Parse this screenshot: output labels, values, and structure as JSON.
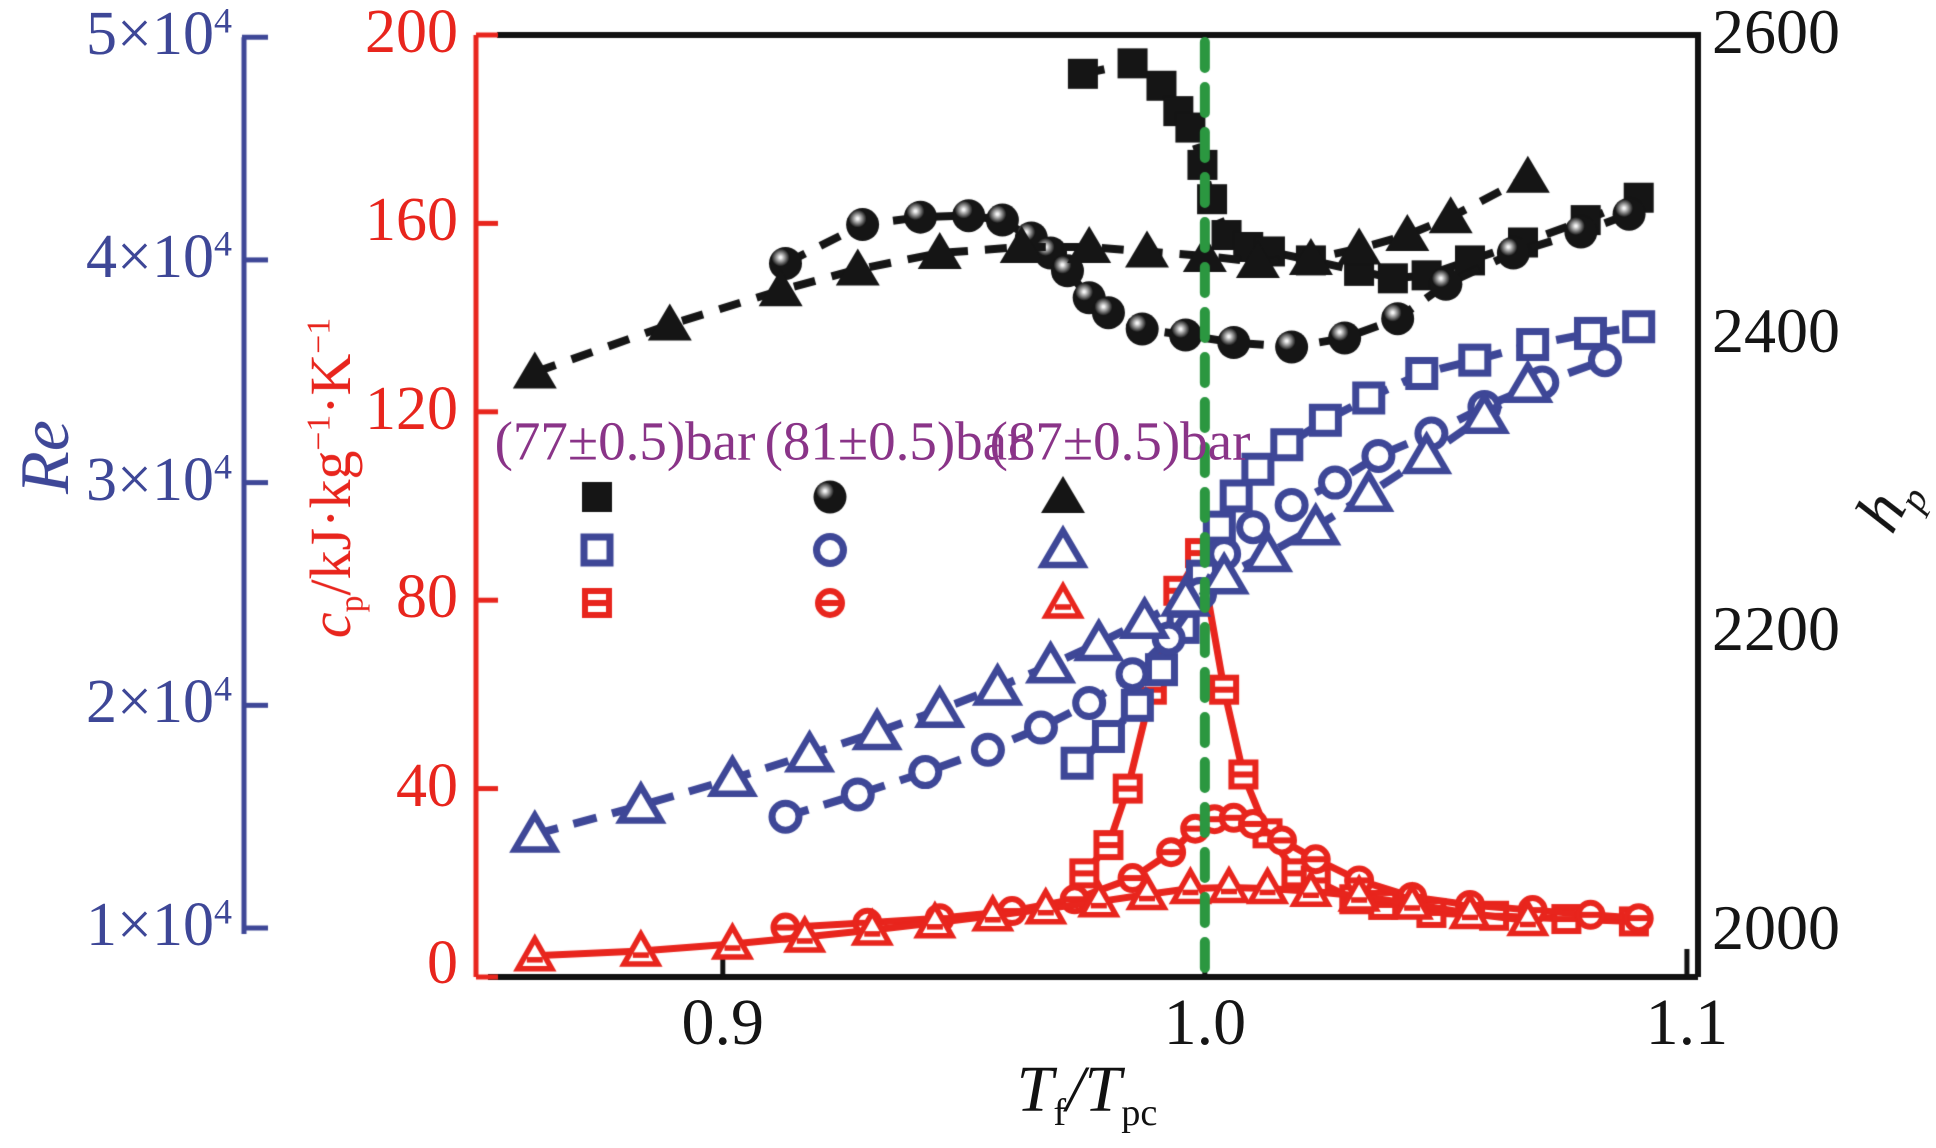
{
  "colors": {
    "black": "#151515",
    "blue": "#3E4797",
    "red": "#E8251D",
    "green": "#2B9740",
    "purple": "#8A3488",
    "frame": "#111111"
  },
  "axes": {
    "x": {
      "title_html": "<i>T</i><sub>f</sub>/<i>T</i><sub>pc</sub>",
      "range": [
        0.8488,
        1.1023
      ],
      "ticks": [
        {
          "label": "0.9",
          "value": 0.9
        },
        {
          "label": "1.0",
          "value": 1.0
        },
        {
          "label": "1.1",
          "value": 1.1
        }
      ]
    },
    "re": {
      "title_html": "<i>Re</i>",
      "range": [
        0.78,
        5.01
      ],
      "unit_exponent": "10^4",
      "ticks": [
        {
          "base": "5×10",
          "sup": "4",
          "value": 5
        },
        {
          "base": "4×10",
          "sup": "4",
          "value": 4
        },
        {
          "base": "3×10",
          "sup": "4",
          "value": 3
        },
        {
          "base": "2×10",
          "sup": "4",
          "value": 2
        },
        {
          "base": "1×10",
          "sup": "4",
          "value": 1
        }
      ]
    },
    "cp": {
      "title_html": "<i>c</i><sub>p</sub>/kJ·kg<sup>−1</sup>·K<sup>−1</sup>",
      "range": [
        0,
        200
      ],
      "ticks": [
        {
          "label": "200",
          "value": 200
        },
        {
          "label": "160",
          "value": 160
        },
        {
          "label": "120",
          "value": 120
        },
        {
          "label": "80",
          "value": 80
        },
        {
          "label": "40",
          "value": 40
        },
        {
          "label": "0",
          "value": 0
        }
      ]
    },
    "hp": {
      "title_html": "<i>h</i><sub>p</sub>",
      "range": [
        1967,
        2598
      ],
      "ticks": [
        {
          "label": "2600",
          "value": 2600
        },
        {
          "label": "2400",
          "value": 2400
        },
        {
          "label": "2200",
          "value": 2200
        },
        {
          "label": "2000",
          "value": 2000
        }
      ]
    }
  },
  "legend": {
    "labels": [
      "(77±0.5)bar",
      "(81±0.5)bar",
      "(87±0.5)bar"
    ],
    "rows": [
      {
        "quantity": "h_p",
        "color": "black",
        "markers": [
          "square-filled",
          "circle-filled",
          "triangle-filled"
        ]
      },
      {
        "quantity": "Re",
        "color": "blue",
        "markers": [
          "square-open",
          "circle-open",
          "triangle-open"
        ]
      },
      {
        "quantity": "c_p",
        "color": "red",
        "markers": [
          "square-open-dash",
          "circle-open-dash",
          "triangle-open-dash"
        ]
      }
    ]
  },
  "reference_line": {
    "x": 1.0,
    "color": "green",
    "style": "dashed"
  },
  "chart_data": {
    "type": "line",
    "title": "",
    "xlabel": "T_f/T_pc",
    "x_range": [
      0.8488,
      1.1023
    ],
    "grid": false,
    "series": [
      {
        "name": "h_p (77±0.5)bar",
        "axis": "hp",
        "color": "black",
        "marker": "square-filled",
        "line": "dashed",
        "points": [
          [
            0.9747,
            2572
          ],
          [
            0.985,
            2579
          ],
          [
            0.991,
            2564
          ],
          [
            0.9945,
            2547
          ],
          [
            0.997,
            2536
          ],
          [
            0.9995,
            2511
          ],
          [
            1.0015,
            2488
          ],
          [
            1.0045,
            2464
          ],
          [
            1.009,
            2456
          ],
          [
            1.0135,
            2453
          ],
          [
            1.022,
            2447
          ],
          [
            1.032,
            2440
          ],
          [
            1.039,
            2435
          ],
          [
            1.046,
            2437
          ],
          [
            1.055,
            2447
          ],
          [
            1.066,
            2459
          ],
          [
            1.079,
            2474
          ],
          [
            1.09,
            2489
          ]
        ]
      },
      {
        "name": "h_p (81±0.5)bar",
        "axis": "hp",
        "color": "black",
        "marker": "circle-filled",
        "line": "dashed",
        "points": [
          [
            0.913,
            2445
          ],
          [
            0.929,
            2471
          ],
          [
            0.941,
            2476
          ],
          [
            0.951,
            2477
          ],
          [
            0.958,
            2474
          ],
          [
            0.964,
            2462
          ],
          [
            0.968,
            2452
          ],
          [
            0.9715,
            2440
          ],
          [
            0.976,
            2422
          ],
          [
            0.98,
            2412
          ],
          [
            0.987,
            2401
          ],
          [
            0.996,
            2397
          ],
          [
            1.006,
            2392
          ],
          [
            1.018,
            2389
          ],
          [
            1.029,
            2395
          ],
          [
            1.04,
            2408
          ],
          [
            1.05,
            2431
          ],
          [
            1.064,
            2452
          ],
          [
            1.078,
            2466
          ],
          [
            1.088,
            2478
          ]
        ]
      },
      {
        "name": "h_p (87±0.5)bar",
        "axis": "hp",
        "color": "black",
        "marker": "triangle-filled",
        "line": "dashed",
        "points": [
          [
            0.861,
            2372
          ],
          [
            0.889,
            2404
          ],
          [
            0.912,
            2427
          ],
          [
            0.928,
            2441
          ],
          [
            0.945,
            2452
          ],
          [
            0.962,
            2456
          ],
          [
            0.976,
            2456
          ],
          [
            0.988,
            2453
          ],
          [
            1.0,
            2450
          ],
          [
            1.011,
            2446
          ],
          [
            1.022,
            2448
          ],
          [
            1.032,
            2455
          ],
          [
            1.042,
            2464
          ],
          [
            1.051,
            2476
          ],
          [
            1.067,
            2503
          ]
        ]
      },
      {
        "name": "Re (77±0.5)bar",
        "axis": "re",
        "color": "blue",
        "marker": "square-open",
        "line": "dashed",
        "points": [
          [
            0.9735,
            1.74
          ],
          [
            0.98,
            1.86
          ],
          [
            0.986,
            2.0
          ],
          [
            0.991,
            2.16
          ],
          [
            0.9955,
            2.35
          ],
          [
            0.9995,
            2.58
          ],
          [
            1.003,
            2.8
          ],
          [
            1.0065,
            2.94
          ],
          [
            1.011,
            3.06
          ],
          [
            1.017,
            3.17
          ],
          [
            1.025,
            3.28
          ],
          [
            1.034,
            3.38
          ],
          [
            1.045,
            3.49
          ],
          [
            1.056,
            3.55
          ],
          [
            1.068,
            3.62
          ],
          [
            1.08,
            3.67
          ],
          [
            1.09,
            3.7
          ]
        ]
      },
      {
        "name": "Re (81±0.5)bar",
        "axis": "re",
        "color": "blue",
        "marker": "circle-open",
        "line": "dashed",
        "points": [
          [
            0.913,
            1.5
          ],
          [
            0.928,
            1.6
          ],
          [
            0.942,
            1.7
          ],
          [
            0.955,
            1.8
          ],
          [
            0.966,
            1.9
          ],
          [
            0.976,
            2.01
          ],
          [
            0.985,
            2.14
          ],
          [
            0.9925,
            2.3
          ],
          [
            0.999,
            2.5
          ],
          [
            1.004,
            2.68
          ],
          [
            1.01,
            2.8
          ],
          [
            1.018,
            2.9
          ],
          [
            1.027,
            3.0
          ],
          [
            1.036,
            3.12
          ],
          [
            1.047,
            3.22
          ],
          [
            1.058,
            3.34
          ],
          [
            1.07,
            3.45
          ],
          [
            1.083,
            3.55
          ]
        ]
      },
      {
        "name": "Re (87±0.5)bar",
        "axis": "re",
        "color": "blue",
        "marker": "triangle-open",
        "line": "dashed",
        "points": [
          [
            0.861,
            1.42
          ],
          [
            0.883,
            1.55
          ],
          [
            0.902,
            1.67
          ],
          [
            0.918,
            1.78
          ],
          [
            0.932,
            1.88
          ],
          [
            0.945,
            1.98
          ],
          [
            0.957,
            2.08
          ],
          [
            0.968,
            2.18
          ],
          [
            0.978,
            2.28
          ],
          [
            0.9875,
            2.38
          ],
          [
            0.996,
            2.48
          ],
          [
            1.004,
            2.58
          ],
          [
            1.013,
            2.68
          ],
          [
            1.023,
            2.8
          ],
          [
            1.034,
            2.95
          ],
          [
            1.046,
            3.12
          ],
          [
            1.058,
            3.3
          ],
          [
            1.067,
            3.44
          ]
        ]
      },
      {
        "name": "c_p (77±0.5)bar",
        "axis": "cp",
        "color": "red",
        "marker": "square-open-dash",
        "line": "solid",
        "points": [
          [
            0.975,
            22
          ],
          [
            0.98,
            28
          ],
          [
            0.984,
            40
          ],
          [
            0.989,
            61
          ],
          [
            0.9945,
            82
          ],
          [
            0.999,
            90
          ],
          [
            1.004,
            61
          ],
          [
            1.008,
            43
          ],
          [
            1.013,
            30.5
          ],
          [
            1.019,
            22
          ],
          [
            1.023,
            20.5
          ],
          [
            1.031,
            16.5
          ],
          [
            1.037,
            15.3
          ],
          [
            1.047,
            13.6
          ],
          [
            1.06,
            13.0
          ],
          [
            1.075,
            12.3
          ],
          [
            1.089,
            11.8
          ]
        ]
      },
      {
        "name": "c_p (81±0.5)bar",
        "axis": "cp",
        "color": "red",
        "marker": "circle-open-dash",
        "line": "solid",
        "points": [
          [
            0.913,
            10.5
          ],
          [
            0.93,
            11.5
          ],
          [
            0.945,
            12.5
          ],
          [
            0.96,
            14.0
          ],
          [
            0.973,
            16.5
          ],
          [
            0.985,
            21
          ],
          [
            0.993,
            26.5
          ],
          [
            0.998,
            31.5
          ],
          [
            1.002,
            33.5
          ],
          [
            1.006,
            33.8
          ],
          [
            1.01,
            32.5
          ],
          [
            1.016,
            29
          ],
          [
            1.023,
            25
          ],
          [
            1.032,
            20.5
          ],
          [
            1.043,
            17
          ],
          [
            1.055,
            15.3
          ],
          [
            1.068,
            14.2
          ],
          [
            1.08,
            13.2
          ],
          [
            1.09,
            12.5
          ]
        ]
      },
      {
        "name": "c_p (87±0.5)bar",
        "axis": "cp",
        "color": "red",
        "marker": "triangle-open-dash",
        "line": "solid",
        "points": [
          [
            0.861,
            4.5
          ],
          [
            0.883,
            5.5
          ],
          [
            0.902,
            7.0
          ],
          [
            0.917,
            8.5
          ],
          [
            0.931,
            10.0
          ],
          [
            0.944,
            11.5
          ],
          [
            0.956,
            13.0
          ],
          [
            0.967,
            14.5
          ],
          [
            0.978,
            16.0
          ],
          [
            0.988,
            17.5
          ],
          [
            0.997,
            18.8
          ],
          [
            1.005,
            19.0
          ],
          [
            1.013,
            18.8
          ],
          [
            1.022,
            18.2
          ],
          [
            1.032,
            17.2
          ],
          [
            1.043,
            15.5
          ],
          [
            1.055,
            13.5
          ],
          [
            1.067,
            12.0
          ]
        ]
      }
    ]
  }
}
